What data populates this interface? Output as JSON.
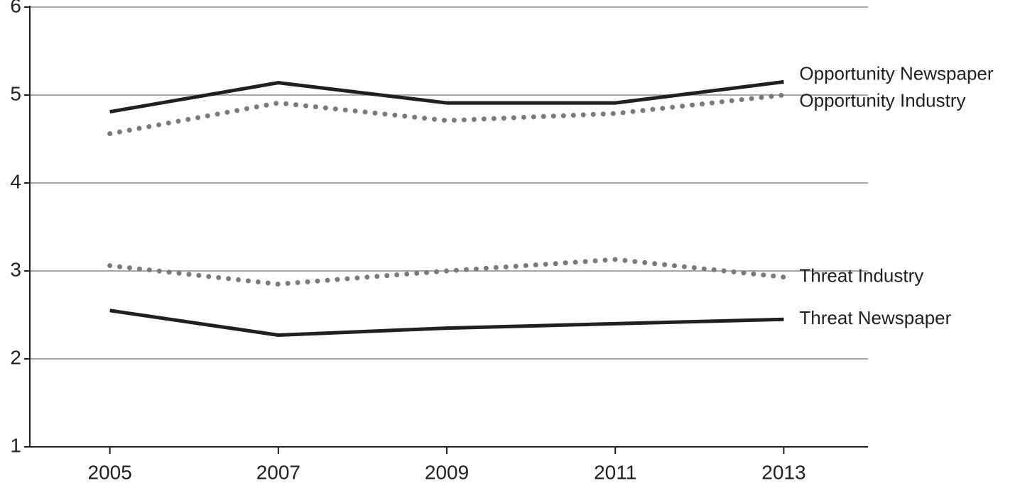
{
  "chart_data": {
    "type": "line",
    "x": [
      2005,
      2007,
      2009,
      2011,
      2013
    ],
    "xlim": [
      2004.05,
      2014
    ],
    "xticks": [
      2005,
      2007,
      2009,
      2011,
      2013
    ],
    "ylim": [
      1,
      6
    ],
    "yticks": [
      1,
      2,
      3,
      4,
      5,
      6
    ],
    "grid": true,
    "series": [
      {
        "name": "Opportunity Newspaper",
        "color": "#231f20",
        "style": "solid",
        "values": [
          4.81,
          5.14,
          4.91,
          4.91,
          5.15
        ]
      },
      {
        "name": "Opportunity Industry",
        "color": "#7a7a7a",
        "style": "dotted",
        "values": [
          4.56,
          4.91,
          4.71,
          4.79,
          5.0
        ]
      },
      {
        "name": "Threat Industry",
        "color": "#7a7a7a",
        "style": "dotted",
        "values": [
          3.06,
          2.85,
          3.0,
          3.13,
          2.93
        ]
      },
      {
        "name": "Threat Newspaper",
        "color": "#231f20",
        "style": "solid",
        "values": [
          2.55,
          2.27,
          2.35,
          2.4,
          2.45
        ]
      }
    ]
  }
}
